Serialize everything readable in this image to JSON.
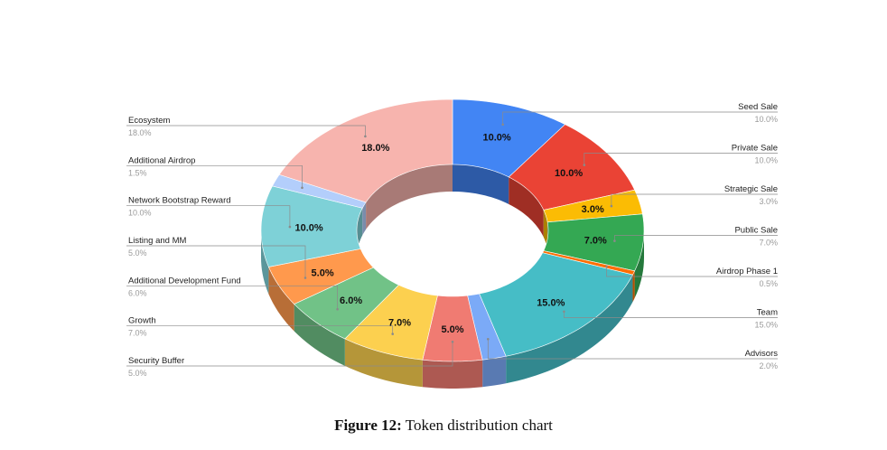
{
  "caption": {
    "prefix": "Figure 12:",
    "text": "Token distribution chart"
  },
  "chart_data": {
    "type": "pie",
    "style": "3d-donut",
    "title": "",
    "legend": "none",
    "slices": [
      {
        "name": "Seed Sale",
        "value": 10.0,
        "label": "10.0%",
        "color": "#4285f4",
        "side": "right"
      },
      {
        "name": "Private Sale",
        "value": 10.0,
        "label": "10.0%",
        "color": "#ea4335",
        "side": "right"
      },
      {
        "name": "Strategic Sale",
        "value": 3.0,
        "label": "3.0%",
        "color": "#fbbc04",
        "side": "right"
      },
      {
        "name": "Public Sale",
        "value": 7.0,
        "label": "7.0%",
        "color": "#34a853",
        "side": "right"
      },
      {
        "name": "Airdrop Phase 1",
        "value": 0.5,
        "label": "0.5%",
        "color": "#ff6d01",
        "side": "right"
      },
      {
        "name": "Team",
        "value": 15.0,
        "label": "15.0%",
        "color": "#46bdc6",
        "side": "right"
      },
      {
        "name": "Advisors",
        "value": 2.0,
        "label": "2.0%",
        "color": "#7baaf7",
        "side": "right"
      },
      {
        "name": "Security Buffer",
        "value": 5.0,
        "label": "5.0%",
        "color": "#f07b72",
        "side": "left"
      },
      {
        "name": "Growth",
        "value": 7.0,
        "label": "7.0%",
        "color": "#fcd04f",
        "side": "left"
      },
      {
        "name": "Additional Development Fund",
        "value": 6.0,
        "label": "6.0%",
        "color": "#71c287",
        "side": "left"
      },
      {
        "name": "Listing and MM",
        "value": 5.0,
        "label": "5.0%",
        "color": "#ff994d",
        "side": "left"
      },
      {
        "name": "Network Bootstrap Reward",
        "value": 10.0,
        "label": "10.0%",
        "color": "#7ed1d7",
        "side": "left"
      },
      {
        "name": "Additional Airdrop",
        "value": 1.5,
        "label": "1.5%",
        "color": "#b3cefb",
        "side": "left"
      },
      {
        "name": "Ecosystem",
        "value": 18.0,
        "label": "18.0%",
        "color": "#f7b4ae",
        "side": "left"
      }
    ]
  }
}
